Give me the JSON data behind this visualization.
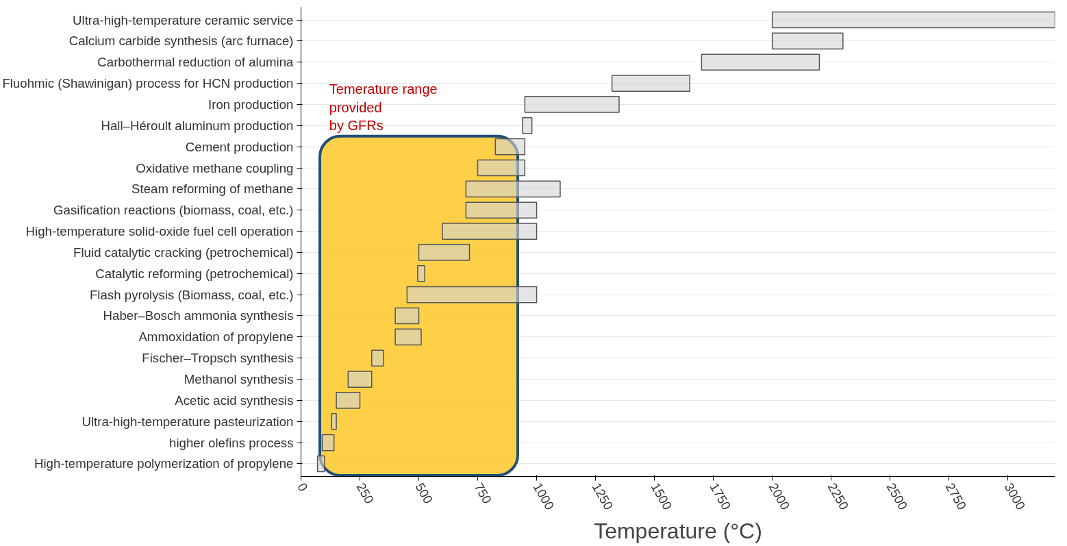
{
  "chart_data": {
    "type": "bar",
    "orientation": "horizontal",
    "xlabel": "Temperature (°C)",
    "categories": [
      "Ultra-high-temperature ceramic service",
      "Calcium carbide synthesis (arc furnace)",
      "Carbothermal reduction of alumina",
      "Fluohmic (Shawinigan) process for HCN production",
      "Iron production",
      "Hall–Héroult aluminum production",
      "Cement production",
      "Oxidative methane coupling",
      "Steam reforming of methane",
      "Gasification reactions (biomass, coal, etc.)",
      "High-temperature solid-oxide fuel cell operation",
      "Fluid catalytic cracking (petrochemical)",
      "Catalytic reforming (petrochemical)",
      "Flash pyrolysis (Biomass, coal, etc.)",
      "Haber–Bosch ammonia synthesis",
      "Ammoxidation of propylene",
      "Fischer–Tropsch synthesis",
      "Methanol synthesis",
      "Acetic acid synthesis",
      "Ultra-high-temperature pasteurization",
      "higher olefins process",
      "High-temperature polymerization of propylene"
    ],
    "base": [
      2000,
      2000,
      1700,
      1320,
      950,
      940,
      825,
      750,
      700,
      700,
      600,
      500,
      495,
      450,
      400,
      400,
      300,
      200,
      150,
      130,
      90,
      70
    ],
    "values": [
      1200,
      300,
      500,
      330,
      400,
      40,
      125,
      200,
      400,
      300,
      400,
      215,
      30,
      550,
      100,
      110,
      50,
      100,
      100,
      20,
      50,
      30
    ],
    "color": "#d3d3d3",
    "xlim": [
      0,
      3200
    ],
    "xticks": [
      0,
      250,
      500,
      750,
      1000,
      1250,
      1500,
      1750,
      2000,
      2250,
      2500,
      2750,
      3000
    ],
    "grid": "y",
    "bands": [
      {
        "axis": "x",
        "from": 80,
        "to": 920,
        "label": "Temerature range\nprovided\nby GFRs",
        "color": "#fcc419"
      }
    ]
  }
}
